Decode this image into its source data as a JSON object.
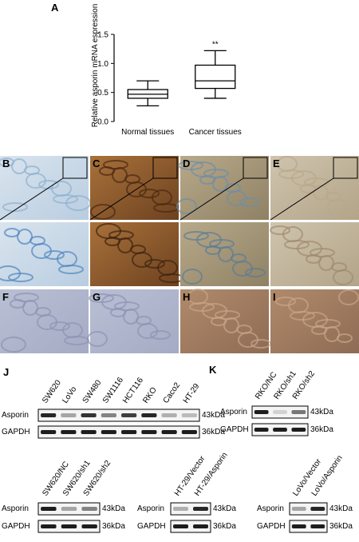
{
  "chart_data": {
    "type": "box",
    "panel_label": "A",
    "ylabel": "Relative asporin mRNA espression",
    "categories": [
      "Normal tissues",
      "Cancer tissues"
    ],
    "boxes": [
      {
        "min": 0.27,
        "q1": 0.4,
        "median": 0.47,
        "q3": 0.55,
        "max": 0.7
      },
      {
        "min": 0.4,
        "q1": 0.57,
        "median": 0.7,
        "q3": 0.97,
        "max": 1.22
      }
    ],
    "annotation": "**",
    "ylim": [
      0,
      1.5
    ],
    "yticks": [
      {
        "value": 0,
        "label": "0.0"
      },
      0.5,
      {
        "value": 1,
        "label": "1.0"
      },
      {
        "value": 1.5,
        "label": "1.5"
      }
    ]
  },
  "histology": {
    "labels": [
      "B",
      "C",
      "D",
      "E",
      "F",
      "G",
      "H",
      "I"
    ]
  },
  "blots": [
    {
      "label": "J",
      "lanes": [
        "SW620",
        "LoVo",
        "SW480",
        "SW1116",
        "HCT116",
        "RKO",
        "Caco2",
        "HT-29"
      ],
      "rows": [
        {
          "name": "Asporin",
          "size": "43kDa"
        },
        {
          "name": "GAPDH",
          "size": "36kDa"
        }
      ]
    },
    {
      "label": "K",
      "lanes": [
        "RKO/NC",
        "RKO/sh1",
        "RKO/sh2"
      ],
      "rows": [
        {
          "name": "Asporin",
          "size": "43kDa"
        },
        {
          "name": "GAPDH",
          "size": "36kDa"
        }
      ]
    },
    {
      "lanes": [
        "SW620/NC",
        "SW620/sh1",
        "SW620/sh2"
      ],
      "rows": [
        {
          "name": "Asporin",
          "size": "43kDa"
        },
        {
          "name": "GAPDH",
          "size": "36kDa"
        }
      ]
    },
    {
      "lanes": [
        "HT-29/Vector",
        "HT-29/Asporin"
      ],
      "rows": [
        {
          "name": "Asporin",
          "size": "43kDa"
        },
        {
          "name": "GAPDH",
          "size": "36kDa"
        }
      ]
    },
    {
      "lanes": [
        "LoVo/Vector",
        "LoVo/Asporin"
      ],
      "rows": [
        {
          "name": "Asporin",
          "size": "43kDa"
        },
        {
          "name": "GAPDH",
          "size": "36kDa"
        }
      ]
    }
  ]
}
